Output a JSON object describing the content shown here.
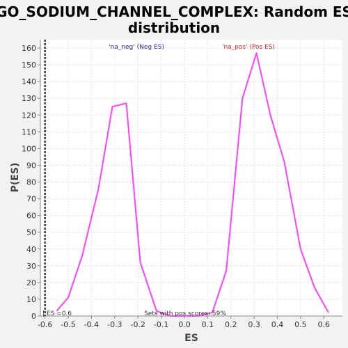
{
  "colors": {
    "series": "#ff40ff",
    "neg_label": "#2222dd",
    "pos_label": "#ee2222",
    "vline": "#000000",
    "grid": "#e2e2e2",
    "plot_bg": "#ffffff",
    "page_bg": "#f2f2f2"
  },
  "chart_data": {
    "type": "line",
    "title_line1": "GO_SODIUM_CHANNEL_COMPLEX: Random ES",
    "title_line2": "distribution",
    "xlabel": "ES",
    "ylabel": "P(ES)",
    "xlim": [
      -0.62,
      0.68
    ],
    "ylim": [
      0,
      165
    ],
    "xticks": [
      -0.6,
      -0.5,
      -0.4,
      -0.3,
      -0.2,
      -0.1,
      0.0,
      0.1,
      0.2,
      0.3,
      0.4,
      0.5,
      0.6
    ],
    "xtick_labels": [
      "-0.6",
      "-0.5",
      "-0.4",
      "-0.3",
      "-0.2",
      "-0.1",
      "0.0",
      "0.1",
      "0.2",
      "0.3",
      "0.4",
      "0.5",
      "0.6"
    ],
    "yticks": [
      0,
      10,
      20,
      30,
      40,
      50,
      60,
      70,
      80,
      90,
      100,
      110,
      120,
      130,
      140,
      150,
      160
    ],
    "ytick_labels": [
      "0",
      "10",
      "20",
      "30",
      "40",
      "50",
      "60",
      "70",
      "80",
      "90",
      "100",
      "110",
      "120",
      "130",
      "140",
      "150",
      "160"
    ],
    "grid": true,
    "series": [
      {
        "x": [
          -0.55,
          -0.5,
          -0.44,
          -0.37,
          -0.31,
          -0.25,
          -0.19,
          -0.12,
          -0.06,
          0.0,
          0.06,
          0.12,
          0.18,
          0.25,
          0.31,
          0.37,
          0.43,
          0.5,
          0.56,
          0.62
        ],
        "y": [
          3,
          11,
          36,
          76,
          125,
          127,
          32,
          3,
          0,
          0,
          0,
          2,
          27,
          130,
          157,
          120,
          92,
          40,
          17,
          2
        ]
      }
    ],
    "vline": {
      "x": -0.6,
      "label": "| ES =0.6"
    },
    "annotations": {
      "neg": "'na_neg' (Neg ES)",
      "pos": "'na_pos' (Pos ES)",
      "pos_scores": "Sets with pos scores: 59%"
    }
  }
}
